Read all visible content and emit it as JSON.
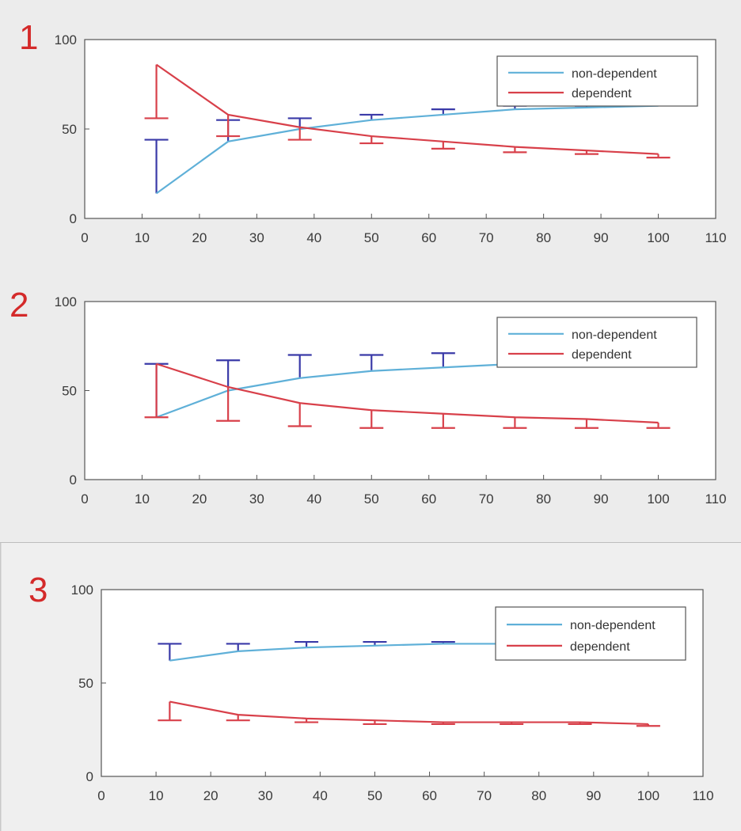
{
  "colors": {
    "non_dependent_line": "#5fb0d8",
    "non_dependent_err": "#3a3aa8",
    "dependent": "#d8404a",
    "axis": "#555555",
    "plot_bg": "#ffffff",
    "panel_bg": "#ececec",
    "panel_number": "#d42a2a"
  },
  "chart_data": [
    {
      "type": "line",
      "panel_label": "1",
      "xlim": [
        0,
        110
      ],
      "ylim": [
        0,
        100
      ],
      "xticks": [
        0,
        10,
        20,
        30,
        40,
        50,
        60,
        70,
        80,
        90,
        100,
        110
      ],
      "yticks": [
        0,
        50,
        100
      ],
      "grid": false,
      "legend": "top-right",
      "x": [
        12.5,
        25,
        37.5,
        50,
        62.5,
        75,
        87.5,
        100
      ],
      "series": [
        {
          "name": "non-dependent",
          "values": [
            14,
            43,
            50,
            55,
            58,
            61,
            62,
            63
          ],
          "err_upper": [
            44,
            55,
            56,
            58,
            61,
            63,
            63,
            64
          ]
        },
        {
          "name": "dependent",
          "values": [
            86,
            58,
            51,
            46,
            43,
            40,
            38,
            36
          ],
          "err_lower": [
            56,
            46,
            44,
            42,
            39,
            37,
            36,
            34
          ]
        }
      ]
    },
    {
      "type": "line",
      "panel_label": "2",
      "xlim": [
        0,
        110
      ],
      "ylim": [
        0,
        100
      ],
      "xticks": [
        0,
        10,
        20,
        30,
        40,
        50,
        60,
        70,
        80,
        90,
        100,
        110
      ],
      "yticks": [
        0,
        50,
        100
      ],
      "grid": false,
      "legend": "top-right",
      "x": [
        12.5,
        25,
        37.5,
        50,
        62.5,
        75,
        87.5,
        100
      ],
      "series": [
        {
          "name": "non-dependent",
          "values": [
            35,
            50,
            57,
            61,
            63,
            65,
            66,
            67
          ],
          "err_upper": [
            65,
            67,
            70,
            70,
            71,
            71,
            72,
            72
          ]
        },
        {
          "name": "dependent",
          "values": [
            65,
            52,
            43,
            39,
            37,
            35,
            34,
            32
          ],
          "err_lower": [
            35,
            33,
            30,
            29,
            29,
            29,
            29,
            29
          ]
        }
      ]
    },
    {
      "type": "line",
      "panel_label": "3",
      "xlim": [
        0,
        110
      ],
      "ylim": [
        0,
        100
      ],
      "xticks": [
        0,
        10,
        20,
        30,
        40,
        50,
        60,
        70,
        80,
        90,
        100,
        110
      ],
      "yticks": [
        0,
        50,
        100
      ],
      "grid": false,
      "legend": "top-right",
      "x": [
        12.5,
        25,
        37.5,
        50,
        62.5,
        75,
        87.5,
        100
      ],
      "series": [
        {
          "name": "non-dependent",
          "values": [
            62,
            67,
            69,
            70,
            71,
            71,
            71,
            71
          ],
          "err_upper": [
            71,
            71,
            72,
            72,
            72,
            72,
            72,
            72
          ]
        },
        {
          "name": "dependent",
          "values": [
            40,
            33,
            31,
            30,
            29,
            29,
            29,
            28
          ],
          "err_lower": [
            30,
            30,
            29,
            28,
            28,
            28,
            28,
            27
          ]
        }
      ]
    }
  ]
}
